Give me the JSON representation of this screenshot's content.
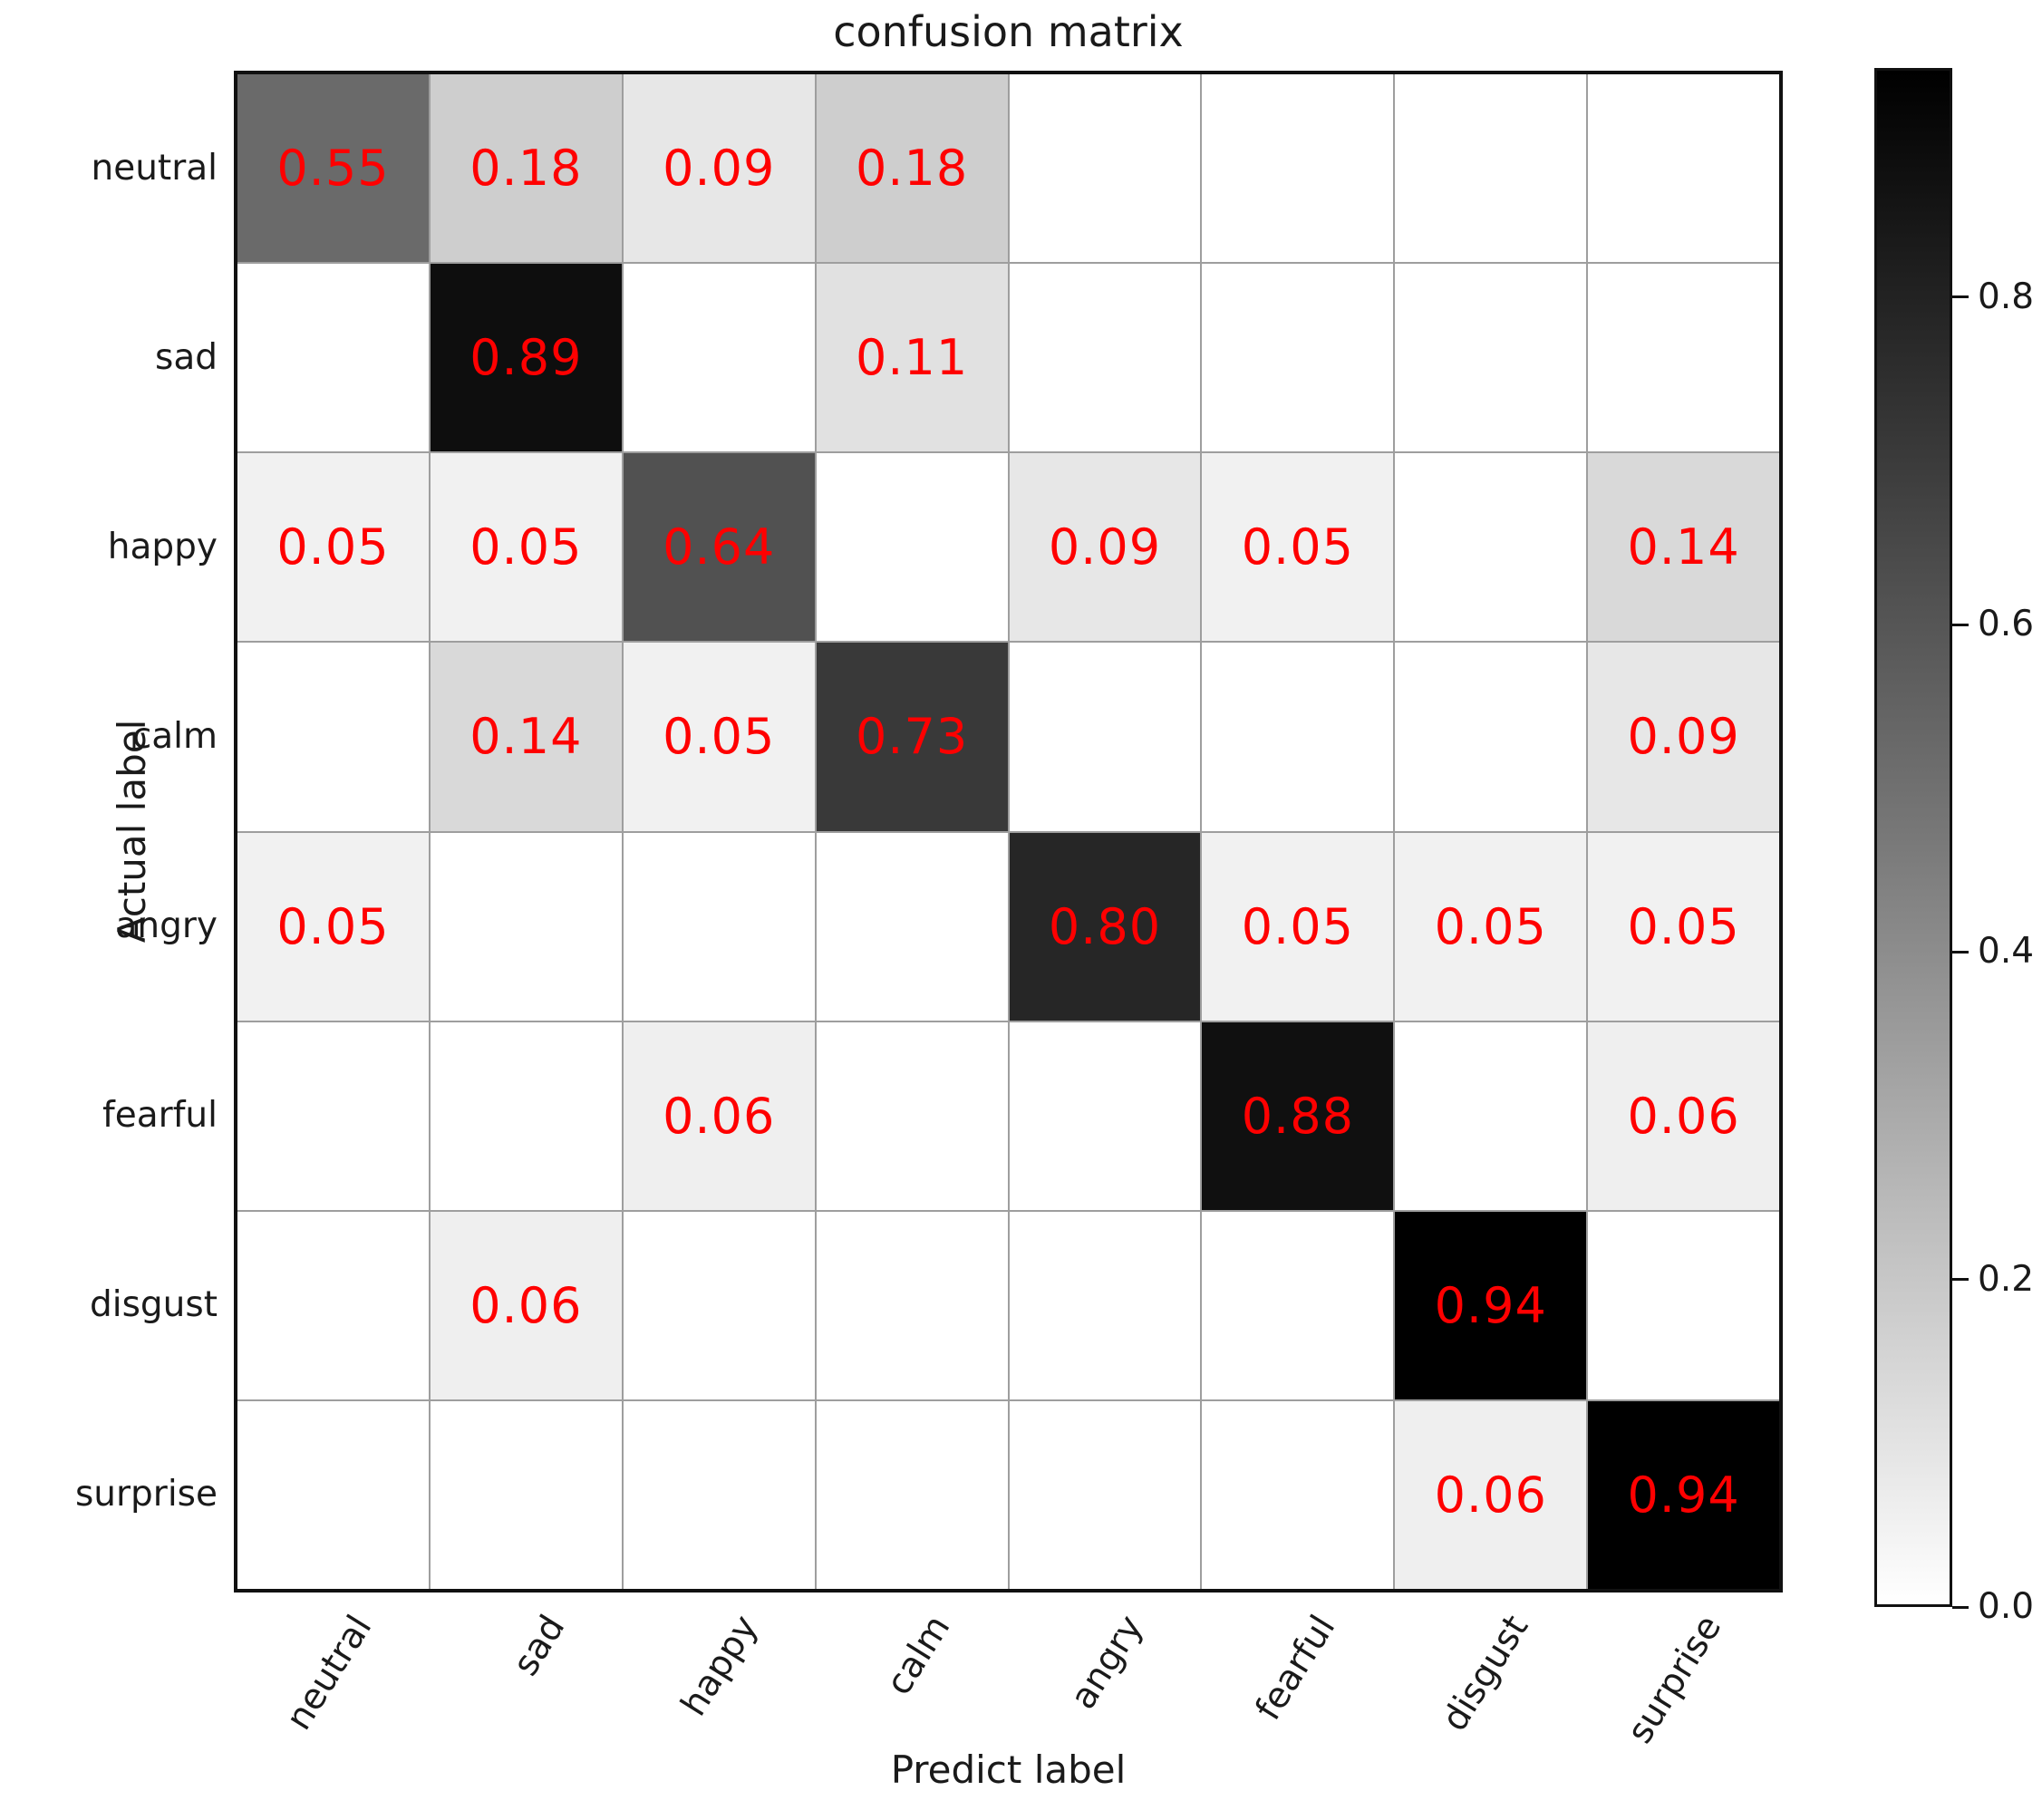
{
  "title": "confusion matrix",
  "x_axis_label": "Predict label",
  "y_axis_label": "Actual label",
  "annotation_color": "#ff0000",
  "grid_line_color": "#9e9e9e",
  "border_color": "#111111",
  "colorbar": {
    "vmin": 0.0,
    "vmax": 0.94,
    "ticks": [
      0.0,
      0.2,
      0.4,
      0.6,
      0.8
    ],
    "top_color": "#000000",
    "bottom_color": "#ffffff"
  },
  "chart_data": {
    "type": "heatmap",
    "title": "confusion matrix",
    "xlabel": "Predict label",
    "ylabel": "Actual label",
    "x_categories": [
      "neutral",
      "sad",
      "happy",
      "calm",
      "angry",
      "fearful",
      "disgust",
      "surprise"
    ],
    "y_categories": [
      "neutral",
      "sad",
      "happy",
      "calm",
      "angry",
      "fearful",
      "disgust",
      "surprise"
    ],
    "matrix": [
      [
        0.55,
        0.18,
        0.09,
        0.18,
        0.0,
        0.0,
        0.0,
        0.0
      ],
      [
        0.0,
        0.89,
        0.0,
        0.11,
        0.0,
        0.0,
        0.0,
        0.0
      ],
      [
        0.05,
        0.05,
        0.64,
        0.0,
        0.09,
        0.05,
        0.0,
        0.14
      ],
      [
        0.0,
        0.14,
        0.05,
        0.73,
        0.0,
        0.0,
        0.0,
        0.09
      ],
      [
        0.05,
        0.0,
        0.0,
        0.0,
        0.8,
        0.05,
        0.05,
        0.05
      ],
      [
        0.0,
        0.0,
        0.06,
        0.0,
        0.0,
        0.88,
        0.0,
        0.06
      ],
      [
        0.0,
        0.06,
        0.0,
        0.0,
        0.0,
        0.0,
        0.94,
        0.0
      ],
      [
        0.0,
        0.0,
        0.0,
        0.0,
        0.0,
        0.0,
        0.06,
        0.94
      ]
    ],
    "cell_label_format": "two_decimals_hide_zero",
    "colormap": "Greys",
    "value_range": [
      0.0,
      0.94
    ],
    "legend_position": "right-colorbar",
    "grid": true
  }
}
